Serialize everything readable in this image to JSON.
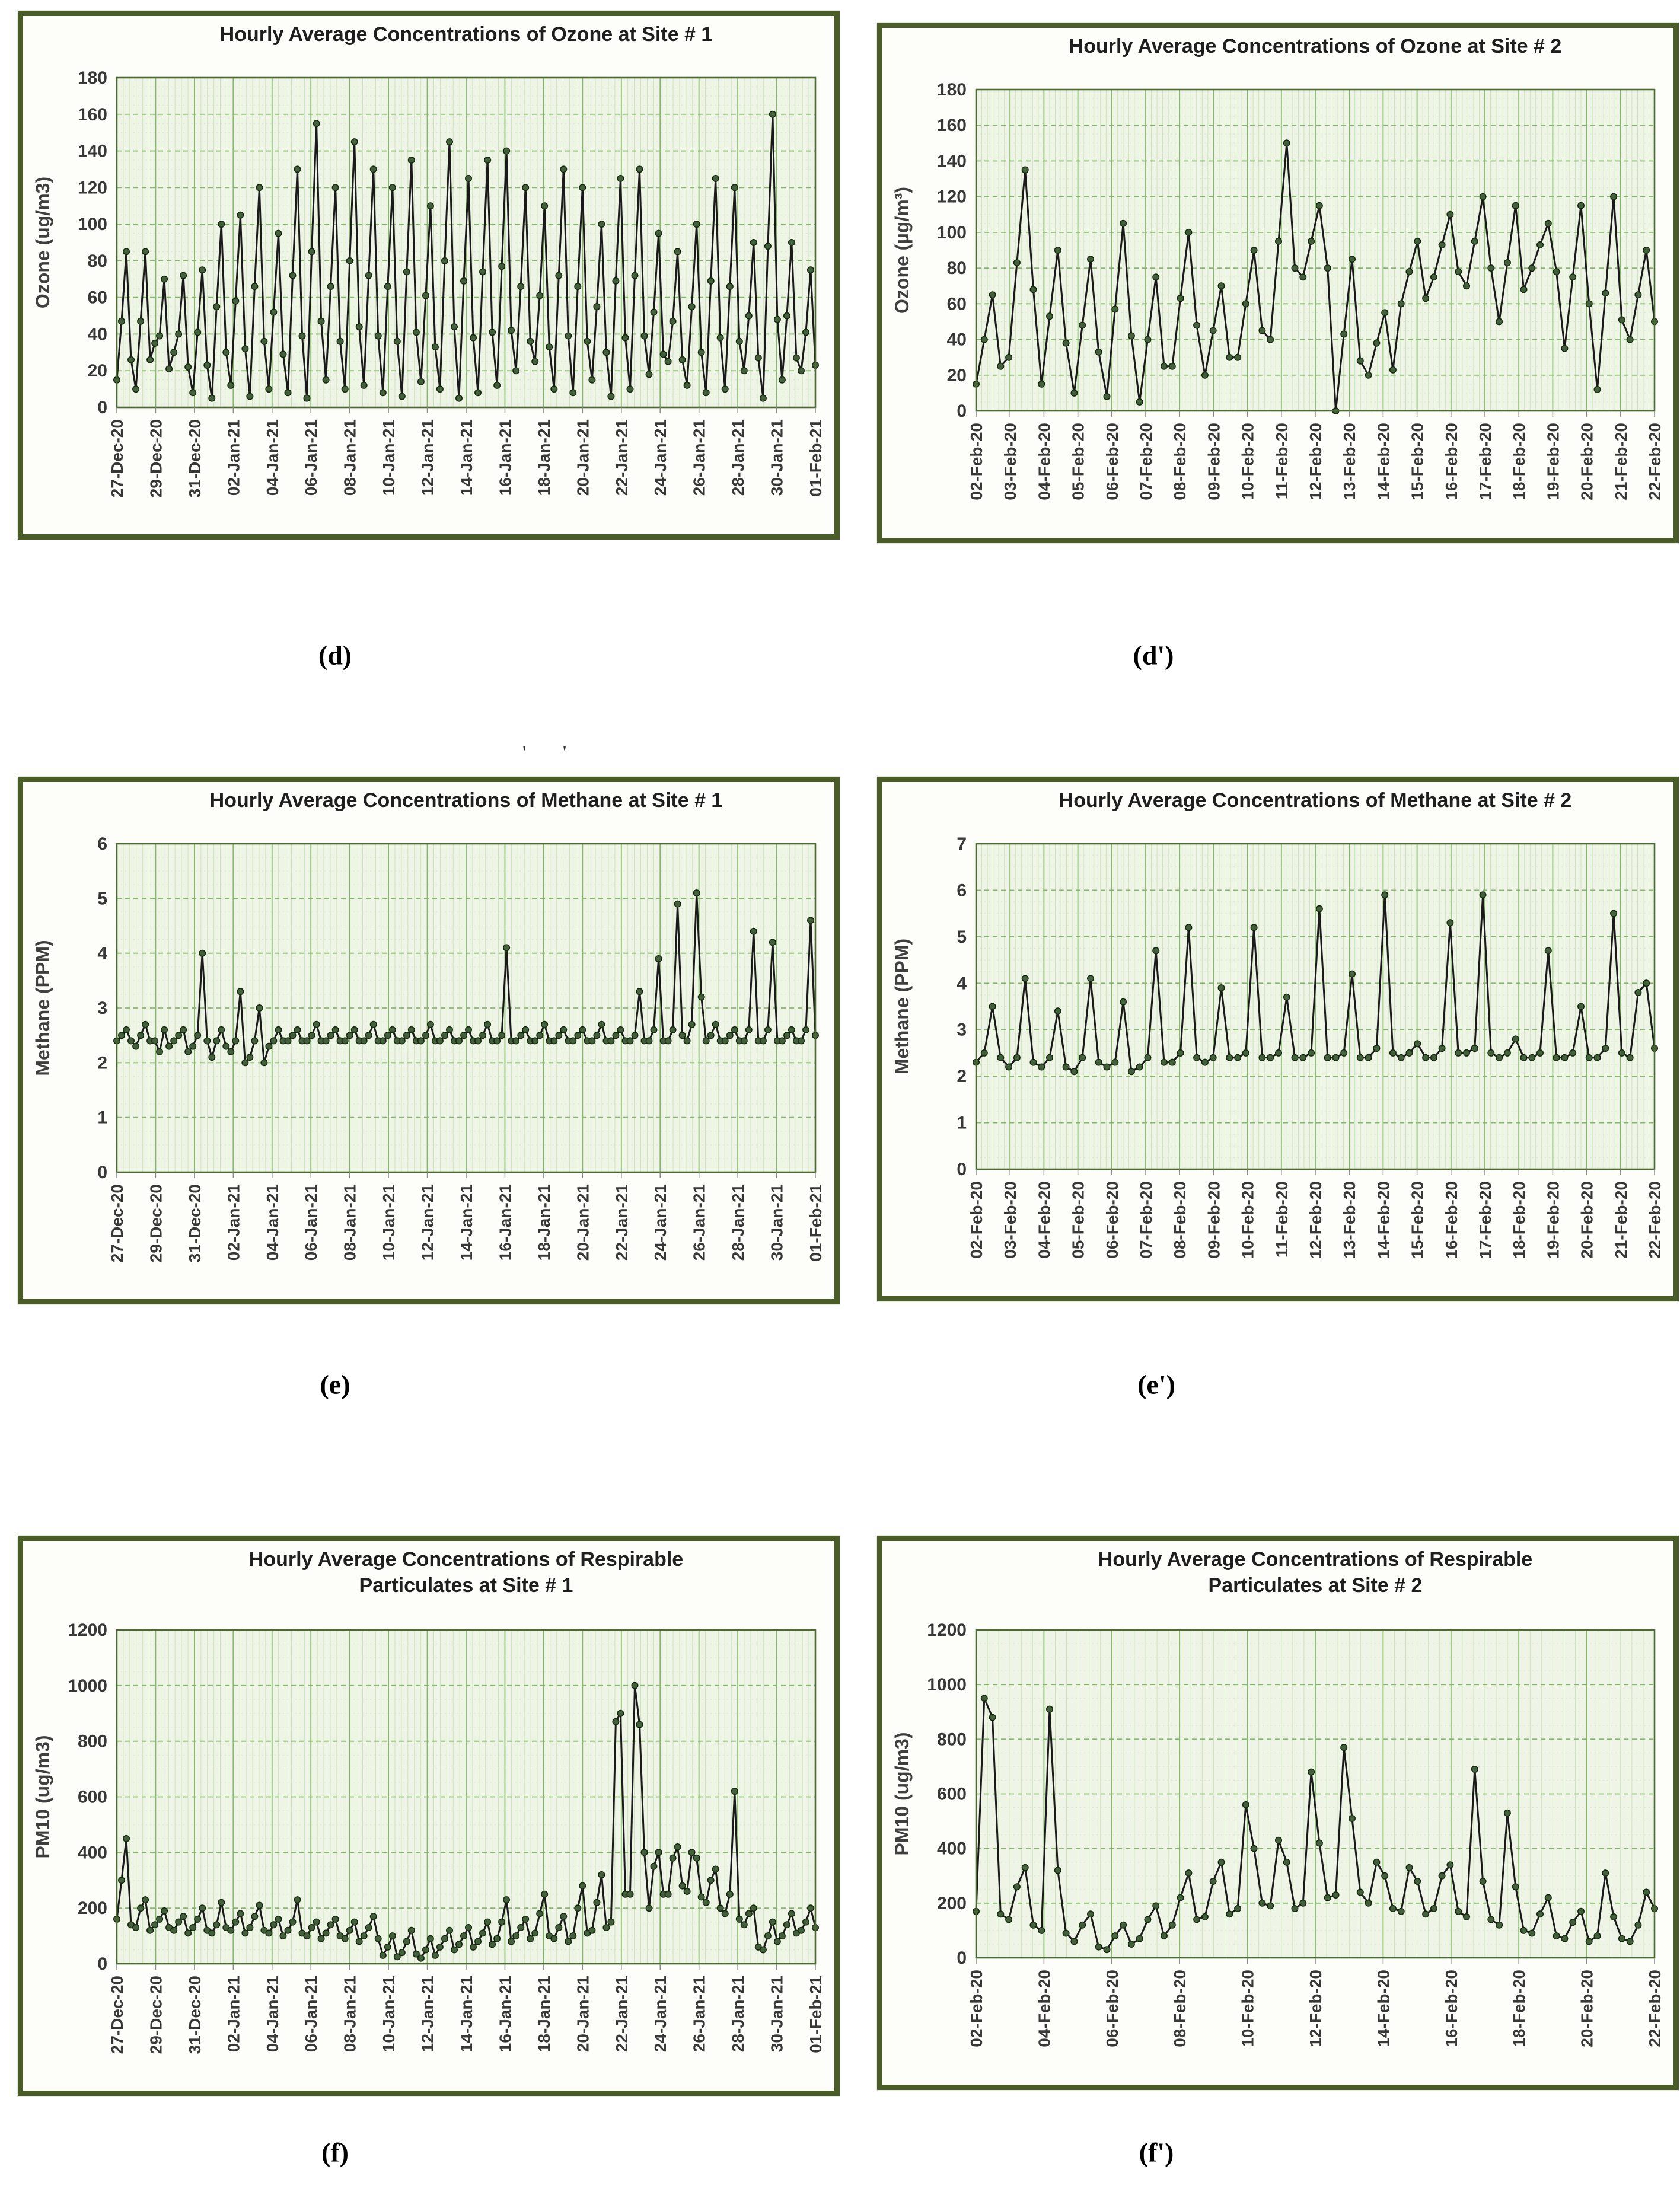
{
  "style": {
    "panel_border": "#4a5c28",
    "plot_bg": "#eef5e6",
    "grid_major": "#86b86b",
    "grid_minor_v": "#cfe3bb",
    "grid_minor_h": "#d8e7c6",
    "frame": "#4e6a33",
    "series_line": "#1a1a1a",
    "marker_fill": "#43603c",
    "marker_stroke": "#16290e",
    "title_color": "#1f1f1f",
    "tick_color": "#383838",
    "axis_label_color": "#3f3f3f"
  },
  "figure_labels": [
    {
      "id": "d",
      "text": "(d)"
    },
    {
      "id": "dp",
      "text": "(d')"
    },
    {
      "id": "e",
      "text": "(e)"
    },
    {
      "id": "ep",
      "text": "(e')"
    },
    {
      "id": "f",
      "text": "(f)"
    },
    {
      "id": "fp",
      "text": "(f')"
    }
  ],
  "artifacts": {
    "panel_e_top": "' '"
  },
  "chart_data": [
    {
      "id": "d",
      "type": "line",
      "title_lines": [
        "Hourly Average Concentrations of Ozone at Site # 1"
      ],
      "ylabel": "Ozone (ug/m3)",
      "ylim": [
        0,
        180
      ],
      "ystep": 20,
      "grid": true,
      "legend": "none",
      "xlabels": [
        "27-Dec-20",
        "29-Dec-20",
        "31-Dec-20",
        "02-Jan-21",
        "04-Jan-21",
        "06-Jan-21",
        "08-Jan-21",
        "10-Jan-21",
        "12-Jan-21",
        "14-Jan-21",
        "16-Jan-21",
        "18-Jan-21",
        "20-Jan-21",
        "22-Jan-21",
        "24-Jan-21",
        "26-Jan-21",
        "28-Jan-21",
        "30-Jan-21",
        "01-Feb-21"
      ],
      "values": [
        15,
        47,
        85,
        26,
        10,
        47,
        85,
        26,
        35,
        39,
        70,
        21,
        30,
        40,
        72,
        22,
        8,
        41,
        75,
        23,
        5,
        55,
        100,
        30,
        12,
        58,
        105,
        32,
        6,
        66,
        120,
        36,
        10,
        52,
        95,
        29,
        8,
        72,
        130,
        39,
        5,
        85,
        155,
        47,
        15,
        66,
        120,
        36,
        10,
        80,
        145,
        44,
        12,
        72,
        130,
        39,
        8,
        66,
        120,
        36,
        6,
        74,
        135,
        41,
        14,
        61,
        110,
        33,
        10,
        80,
        145,
        44,
        5,
        69,
        125,
        38,
        8,
        74,
        135,
        41,
        12,
        77,
        140,
        42,
        20,
        66,
        120,
        36,
        25,
        61,
        110,
        33,
        10,
        72,
        130,
        39,
        8,
        66,
        120,
        36,
        15,
        55,
        100,
        30,
        6,
        69,
        125,
        38,
        10,
        72,
        130,
        39,
        18,
        52,
        95,
        29,
        25,
        47,
        85,
        26,
        12,
        55,
        100,
        30,
        8,
        69,
        125,
        38,
        10,
        66,
        120,
        36,
        20,
        50,
        90,
        27,
        5,
        88,
        160,
        48,
        15,
        50,
        90,
        27,
        20,
        41,
        75,
        23
      ]
    },
    {
      "id": "dp",
      "type": "line",
      "title_lines": [
        "Hourly Average Concentrations of Ozone at Site # 2"
      ],
      "ylabel": "Ozone (µg/m³)",
      "ylim": [
        0,
        180
      ],
      "ystep": 20,
      "grid": true,
      "legend": "none",
      "xlabels": [
        "02-Feb-20",
        "03-Feb-20",
        "04-Feb-20",
        "05-Feb-20",
        "06-Feb-20",
        "07-Feb-20",
        "08-Feb-20",
        "09-Feb-20",
        "10-Feb-20",
        "11-Feb-20",
        "12-Feb-20",
        "13-Feb-20",
        "14-Feb-20",
        "15-Feb-20",
        "16-Feb-20",
        "17-Feb-20",
        "18-Feb-20",
        "19-Feb-20",
        "20-Feb-20",
        "21-Feb-20",
        "22-Feb-20"
      ],
      "values": [
        15,
        40,
        65,
        25,
        30,
        83,
        135,
        68,
        15,
        53,
        90,
        38,
        10,
        48,
        85,
        33,
        8,
        57,
        105,
        42,
        5,
        40,
        75,
        25,
        25,
        63,
        100,
        48,
        20,
        45,
        70,
        30,
        30,
        60,
        90,
        45,
        40,
        95,
        150,
        80,
        75,
        95,
        115,
        80,
        0,
        43,
        85,
        28,
        20,
        38,
        55,
        23,
        60,
        78,
        95,
        63,
        75,
        93,
        110,
        78,
        70,
        95,
        120,
        80,
        50,
        83,
        115,
        68,
        80,
        93,
        105,
        78,
        35,
        75,
        115,
        60,
        12,
        66,
        120,
        51,
        40,
        65,
        90,
        50
      ]
    },
    {
      "id": "e",
      "type": "line",
      "title_lines": [
        "Hourly Average Concentrations of Methane at Site # 1"
      ],
      "ylabel": "Methane (PPM)",
      "ylim": [
        0,
        6
      ],
      "ystep": 1,
      "grid": true,
      "legend": "none",
      "xlabels": [
        "27-Dec-20",
        "29-Dec-20",
        "31-Dec-20",
        "02-Jan-21",
        "04-Jan-21",
        "06-Jan-21",
        "08-Jan-21",
        "10-Jan-21",
        "12-Jan-21",
        "14-Jan-21",
        "16-Jan-21",
        "18-Jan-21",
        "20-Jan-21",
        "22-Jan-21",
        "24-Jan-21",
        "26-Jan-21",
        "28-Jan-21",
        "30-Jan-21",
        "01-Feb-21"
      ],
      "values": [
        2.4,
        2.5,
        2.6,
        2.4,
        2.3,
        2.5,
        2.7,
        2.4,
        2.4,
        2.2,
        2.6,
        2.3,
        2.4,
        2.5,
        2.6,
        2.2,
        2.3,
        2.5,
        4.0,
        2.4,
        2.1,
        2.4,
        2.6,
        2.3,
        2.2,
        2.4,
        3.3,
        2.0,
        2.1,
        2.4,
        3.0,
        2.0,
        2.3,
        2.4,
        2.6,
        2.4,
        2.4,
        2.5,
        2.6,
        2.4,
        2.4,
        2.5,
        2.7,
        2.4,
        2.4,
        2.5,
        2.6,
        2.4,
        2.4,
        2.5,
        2.6,
        2.4,
        2.4,
        2.5,
        2.7,
        2.4,
        2.4,
        2.5,
        2.6,
        2.4,
        2.4,
        2.5,
        2.6,
        2.4,
        2.4,
        2.5,
        2.7,
        2.4,
        2.4,
        2.5,
        2.6,
        2.4,
        2.4,
        2.5,
        2.6,
        2.4,
        2.4,
        2.5,
        2.7,
        2.4,
        2.4,
        2.5,
        4.1,
        2.4,
        2.4,
        2.5,
        2.6,
        2.4,
        2.4,
        2.5,
        2.7,
        2.4,
        2.4,
        2.5,
        2.6,
        2.4,
        2.4,
        2.5,
        2.6,
        2.4,
        2.4,
        2.5,
        2.7,
        2.4,
        2.4,
        2.5,
        2.6,
        2.4,
        2.4,
        2.5,
        3.3,
        2.4,
        2.4,
        2.6,
        3.9,
        2.4,
        2.4,
        2.6,
        4.9,
        2.5,
        2.4,
        2.7,
        5.1,
        3.2,
        2.4,
        2.5,
        2.7,
        2.4,
        2.4,
        2.5,
        2.6,
        2.4,
        2.4,
        2.6,
        4.4,
        2.4,
        2.4,
        2.6,
        4.2,
        2.4,
        2.4,
        2.5,
        2.6,
        2.4,
        2.4,
        2.6,
        4.6,
        2.5
      ]
    },
    {
      "id": "ep",
      "type": "line",
      "title_lines": [
        "Hourly Average Concentrations of Methane at Site # 2"
      ],
      "ylabel": "Methane (PPM)",
      "ylim": [
        0,
        7
      ],
      "ystep": 1,
      "grid": true,
      "legend": "none",
      "xlabels": [
        "02-Feb-20",
        "03-Feb-20",
        "04-Feb-20",
        "05-Feb-20",
        "06-Feb-20",
        "07-Feb-20",
        "08-Feb-20",
        "09-Feb-20",
        "10-Feb-20",
        "11-Feb-20",
        "12-Feb-20",
        "13-Feb-20",
        "14-Feb-20",
        "15-Feb-20",
        "16-Feb-20",
        "17-Feb-20",
        "18-Feb-20",
        "19-Feb-20",
        "20-Feb-20",
        "21-Feb-20",
        "22-Feb-20"
      ],
      "values": [
        2.3,
        2.5,
        3.5,
        2.4,
        2.2,
        2.4,
        4.1,
        2.3,
        2.2,
        2.4,
        3.4,
        2.2,
        2.1,
        2.4,
        4.1,
        2.3,
        2.2,
        2.3,
        3.6,
        2.1,
        2.2,
        2.4,
        4.7,
        2.3,
        2.3,
        2.5,
        5.2,
        2.4,
        2.3,
        2.4,
        3.9,
        2.4,
        2.4,
        2.5,
        5.2,
        2.4,
        2.4,
        2.5,
        3.7,
        2.4,
        2.4,
        2.5,
        5.6,
        2.4,
        2.4,
        2.5,
        4.2,
        2.4,
        2.4,
        2.6,
        5.9,
        2.5,
        2.4,
        2.5,
        2.7,
        2.4,
        2.4,
        2.6,
        5.3,
        2.5,
        2.5,
        2.6,
        5.9,
        2.5,
        2.4,
        2.5,
        2.8,
        2.4,
        2.4,
        2.5,
        4.7,
        2.4,
        2.4,
        2.5,
        3.5,
        2.4,
        2.4,
        2.6,
        5.5,
        2.5,
        2.4,
        3.8,
        4.0,
        2.6
      ]
    },
    {
      "id": "f",
      "type": "line",
      "title_lines": [
        "Hourly Average Concentrations of Respirable",
        "Particulates at Site # 1"
      ],
      "ylabel": "PM10 (ug/m3)",
      "ylim": [
        0,
        1200
      ],
      "ystep": 200,
      "grid": true,
      "legend": "none",
      "xlabels": [
        "27-Dec-20",
        "29-Dec-20",
        "31-Dec-20",
        "02-Jan-21",
        "04-Jan-21",
        "06-Jan-21",
        "08-Jan-21",
        "10-Jan-21",
        "12-Jan-21",
        "14-Jan-21",
        "16-Jan-21",
        "18-Jan-21",
        "20-Jan-21",
        "22-Jan-21",
        "24-Jan-21",
        "26-Jan-21",
        "28-Jan-21",
        "30-Jan-21",
        "01-Feb-21"
      ],
      "values": [
        160,
        300,
        450,
        140,
        130,
        200,
        230,
        120,
        140,
        160,
        190,
        130,
        120,
        150,
        170,
        110,
        130,
        160,
        200,
        120,
        110,
        140,
        220,
        130,
        120,
        150,
        180,
        110,
        130,
        170,
        210,
        120,
        110,
        140,
        160,
        100,
        120,
        150,
        230,
        110,
        100,
        130,
        150,
        90,
        110,
        140,
        160,
        100,
        90,
        120,
        150,
        80,
        100,
        130,
        170,
        90,
        30,
        60,
        100,
        25,
        40,
        80,
        120,
        35,
        20,
        50,
        90,
        30,
        60,
        90,
        120,
        50,
        70,
        100,
        130,
        60,
        80,
        110,
        150,
        70,
        90,
        150,
        230,
        80,
        100,
        130,
        160,
        90,
        110,
        180,
        250,
        100,
        90,
        130,
        170,
        80,
        100,
        200,
        280,
        110,
        120,
        220,
        320,
        130,
        150,
        870,
        900,
        250,
        250,
        1000,
        860,
        400,
        200,
        350,
        400,
        250,
        250,
        380,
        420,
        280,
        260,
        400,
        380,
        240,
        220,
        300,
        340,
        200,
        180,
        250,
        620,
        160,
        140,
        180,
        200,
        60,
        50,
        100,
        150,
        80,
        100,
        140,
        180,
        110,
        120,
        150,
        200,
        130
      ]
    },
    {
      "id": "fp",
      "type": "line",
      "title_lines": [
        "Hourly Average Concentrations of Respirable",
        "Particulates at Site # 2"
      ],
      "ylabel": "PM10 (ug/m3)",
      "ylim": [
        0,
        1200
      ],
      "ystep": 200,
      "grid": true,
      "legend": "none",
      "xlabels": [
        "02-Feb-20",
        "04-Feb-20",
        "06-Feb-20",
        "08-Feb-20",
        "10-Feb-20",
        "12-Feb-20",
        "14-Feb-20",
        "16-Feb-20",
        "18-Feb-20",
        "20-Feb-20",
        "22-Feb-20"
      ],
      "values": [
        170,
        950,
        880,
        160,
        140,
        260,
        330,
        120,
        100,
        910,
        320,
        90,
        60,
        120,
        160,
        40,
        30,
        80,
        120,
        50,
        70,
        140,
        190,
        80,
        120,
        220,
        310,
        140,
        150,
        280,
        350,
        160,
        180,
        560,
        400,
        200,
        190,
        430,
        350,
        180,
        200,
        680,
        420,
        220,
        230,
        770,
        510,
        240,
        200,
        350,
        300,
        180,
        170,
        330,
        280,
        160,
        180,
        300,
        340,
        170,
        150,
        690,
        280,
        140,
        120,
        530,
        260,
        100,
        90,
        160,
        220,
        80,
        70,
        130,
        170,
        60,
        80,
        310,
        150,
        70,
        60,
        120,
        240,
        180
      ]
    }
  ]
}
